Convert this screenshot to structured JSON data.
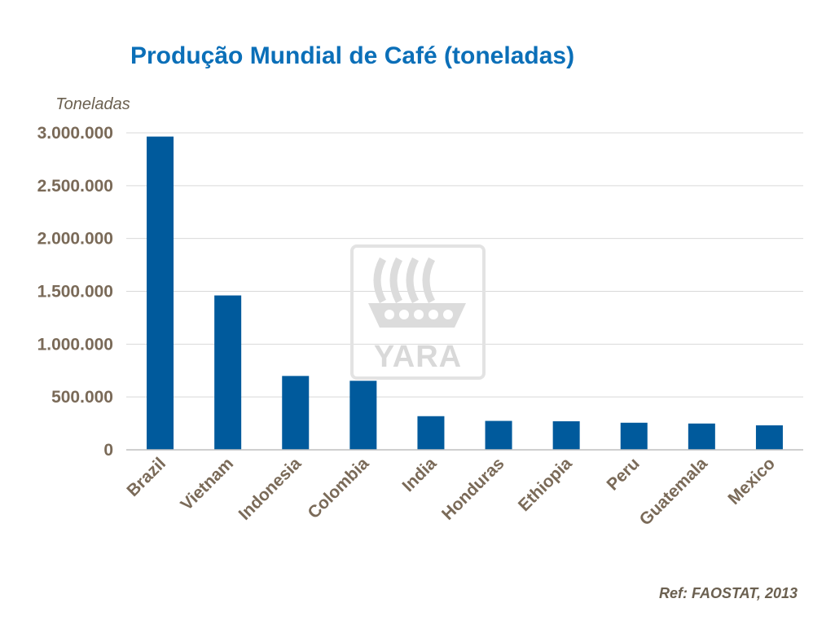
{
  "chart_data": {
    "type": "bar",
    "title": "Produção Mundial de Café (toneladas)",
    "ylabel": "Toneladas",
    "xlabel": "",
    "categories": [
      "Brazil",
      "Vietnam",
      "Indonesia",
      "Colombia",
      "India",
      "Honduras",
      "Ethiopia",
      "Peru",
      "Guatemala",
      "Mexico"
    ],
    "values": [
      2964538,
      1461000,
      698900,
      653160,
      318200,
      273555,
      270000,
      256241,
      248668,
      231596
    ],
    "ylim": [
      0,
      3000000
    ],
    "yticks": [
      0,
      500000,
      1000000,
      1500000,
      2000000,
      2500000,
      3000000
    ],
    "ytick_labels": [
      "0",
      "500.000",
      "1.000.000",
      "1.500.000",
      "2.000.000",
      "2.500.000",
      "3.000.000"
    ],
    "grid": true,
    "bar_color": "#005a9c",
    "source": "Ref: FAOSTAT, 2013"
  },
  "watermark": {
    "text": "YARA",
    "icon": "yara-viking-ship-logo"
  }
}
